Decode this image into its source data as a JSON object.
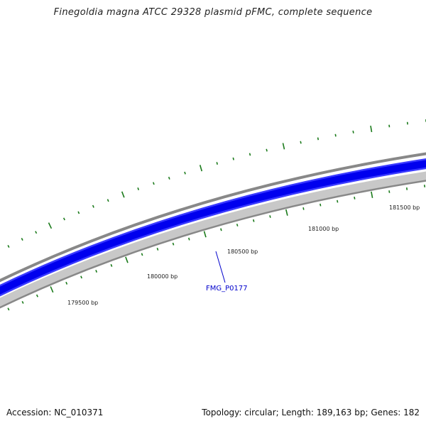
{
  "title": "Finegoldia magna ATCC 29328 plasmid pFMC, complete sequence",
  "footer": {
    "accession": "Accession: NC_010371",
    "summary": "Topology: circular; Length: 189,163 bp; Genes: 182"
  },
  "colors": {
    "backbone": "#888888",
    "cds_fill": "#0000ee",
    "cds_edge": "#3a3aff",
    "rev_strand": "#c8c8c8",
    "tick": "#1a7a1a",
    "label_line": "#0000cc"
  },
  "position_labels": [
    {
      "bp": 179500,
      "text": "179500 bp"
    },
    {
      "bp": 180000,
      "text": "180000 bp"
    },
    {
      "bp": 180500,
      "text": "180500 bp"
    },
    {
      "bp": 181000,
      "text": "181000 bp"
    },
    {
      "bp": 181500,
      "text": "181500 bp"
    }
  ],
  "genes": [
    {
      "name": "FMG_P0177",
      "color": "#0000cc"
    }
  ]
}
